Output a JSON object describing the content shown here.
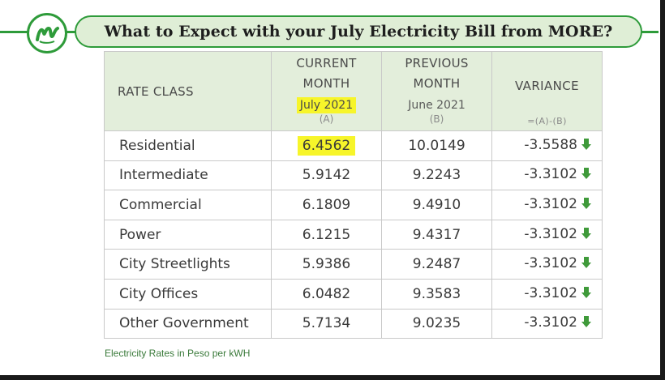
{
  "title": "What to Expect with your July Electricity Bill from MORE?",
  "colors": {
    "brand_green": "#2e9b3a",
    "banner_fill": "#dfeed6",
    "header_fill": "#e3eedb",
    "highlight": "#f7f52a",
    "arrow": "#3f9a3a"
  },
  "logo": {
    "icon": "more-power-logo-icon"
  },
  "table": {
    "headers": {
      "rate_class": "RATE CLASS",
      "current_l1": "CURRENT",
      "current_l2": "MONTH",
      "current_month": "July 2021",
      "current_tag": "(A)",
      "previous_l1": "PREVIOUS",
      "previous_l2": "MONTH",
      "previous_month": "June 2021",
      "previous_tag": "(B)",
      "variance": "VARIANCE",
      "variance_tag": "=(A)-(B)"
    },
    "rows": [
      {
        "rate_class": "Residential",
        "current": "6.4562",
        "previous": "10.0149",
        "variance": "-3.5588",
        "direction": "down"
      },
      {
        "rate_class": "Intermediate",
        "current": "5.9142",
        "previous": "9.2243",
        "variance": "-3.3102",
        "direction": "down"
      },
      {
        "rate_class": "Commercial",
        "current": "6.1809",
        "previous": "9.4910",
        "variance": "-3.3102",
        "direction": "down"
      },
      {
        "rate_class": "Power",
        "current": "6.1215",
        "previous": "9.4317",
        "variance": "-3.3102",
        "direction": "down"
      },
      {
        "rate_class": "City Streetlights",
        "current": "5.9386",
        "previous": "9.2487",
        "variance": "-3.3102",
        "direction": "down"
      },
      {
        "rate_class": "City Offices",
        "current": "6.0482",
        "previous": "9.3583",
        "variance": "-3.3102",
        "direction": "down"
      },
      {
        "rate_class": "Other Government",
        "current": "5.7134",
        "previous": "9.0235",
        "variance": "-3.3102",
        "direction": "down"
      }
    ]
  },
  "footnote": "Electricity Rates in Peso per kWH"
}
